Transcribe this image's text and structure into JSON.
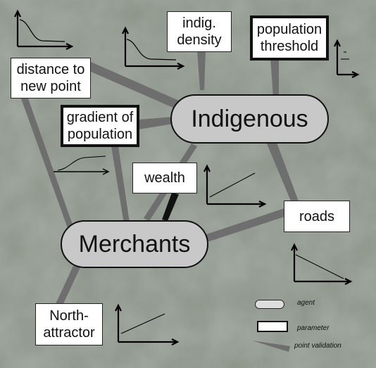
{
  "agents": {
    "indigenous": "Indigenous",
    "merchants": "Merchants"
  },
  "parameters": {
    "indig_density": "indig.\ndensity",
    "population_threshold": "population\nthreshold",
    "distance_to_new_point": "distance to\nnew point",
    "gradient_of_population": "gradient of\npopulation",
    "wealth": "wealth",
    "roads": "roads",
    "north_attractor": "North-\nattractor"
  },
  "legend": {
    "agent": "agent",
    "parameter": "parameter",
    "point_validation": "point validation"
  },
  "colors": {
    "background": "#8c948a",
    "connector": "#6e6e6e",
    "agent_fill": "#c8c8c8"
  }
}
